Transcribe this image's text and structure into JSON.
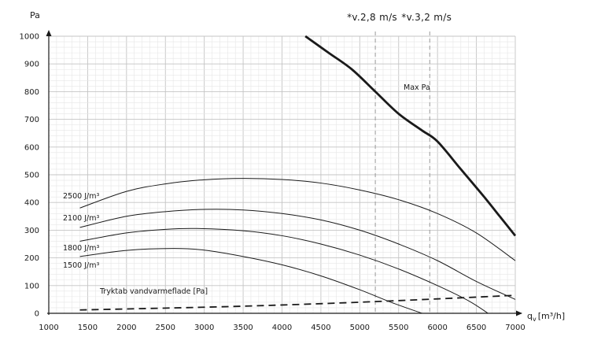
{
  "chart_data": {
    "type": "line",
    "ylabel": "Pa",
    "xlabel": "q",
    "xlabel_sub": "v",
    "xlabel_unit": "[m³/h]",
    "xlim": [
      1000,
      7000
    ],
    "ylim": [
      0,
      1000
    ],
    "x_ticks": [
      1000,
      1500,
      2000,
      2500,
      3000,
      3500,
      4000,
      4500,
      5000,
      5500,
      6000,
      6500,
      7000
    ],
    "y_ticks": [
      0,
      100,
      200,
      300,
      400,
      500,
      600,
      700,
      800,
      900,
      1000
    ],
    "x_minor_step": 100,
    "y_minor_step": 20,
    "grid": true,
    "velocity_markers": [
      {
        "label": "*v.2,8 m/s",
        "x": 5200
      },
      {
        "label": "*v.3,2 m/s",
        "x": 5900
      }
    ],
    "series": [
      {
        "name": "Max Pa",
        "style": "thick",
        "points": [
          [
            4300,
            1000
          ],
          [
            4600,
            940
          ],
          [
            4900,
            880
          ],
          [
            5200,
            800
          ],
          [
            5500,
            720
          ],
          [
            5800,
            660
          ],
          [
            6000,
            620
          ],
          [
            6300,
            520
          ],
          [
            6600,
            420
          ],
          [
            6800,
            350
          ],
          [
            7000,
            280
          ]
        ]
      },
      {
        "name": "2500 J/m³",
        "style": "thin",
        "points": [
          [
            1400,
            380
          ],
          [
            2000,
            440
          ],
          [
            2500,
            467
          ],
          [
            3000,
            482
          ],
          [
            3500,
            487
          ],
          [
            4000,
            483
          ],
          [
            4500,
            470
          ],
          [
            5000,
            445
          ],
          [
            5500,
            410
          ],
          [
            6000,
            360
          ],
          [
            6500,
            290
          ],
          [
            7000,
            190
          ]
        ]
      },
      {
        "name": "2100 J/m³",
        "style": "thin",
        "points": [
          [
            1400,
            310
          ],
          [
            2000,
            350
          ],
          [
            2500,
            367
          ],
          [
            3000,
            375
          ],
          [
            3500,
            373
          ],
          [
            4000,
            360
          ],
          [
            4500,
            337
          ],
          [
            5000,
            300
          ],
          [
            5500,
            250
          ],
          [
            6000,
            190
          ],
          [
            6500,
            115
          ],
          [
            7000,
            50
          ]
        ]
      },
      {
        "name": "1800 J/m³",
        "style": "thin",
        "points": [
          [
            1400,
            260
          ],
          [
            2000,
            290
          ],
          [
            2500,
            303
          ],
          [
            2900,
            306
          ],
          [
            3500,
            298
          ],
          [
            4000,
            280
          ],
          [
            4500,
            250
          ],
          [
            5000,
            210
          ],
          [
            5500,
            160
          ],
          [
            6000,
            100
          ],
          [
            6400,
            45
          ],
          [
            6650,
            0
          ]
        ]
      },
      {
        "name": "1500 J/m³",
        "style": "thin",
        "points": [
          [
            1400,
            205
          ],
          [
            2000,
            227
          ],
          [
            2600,
            234
          ],
          [
            3000,
            228
          ],
          [
            3500,
            205
          ],
          [
            4000,
            175
          ],
          [
            4500,
            135
          ],
          [
            5000,
            85
          ],
          [
            5400,
            40
          ],
          [
            5800,
            0
          ]
        ]
      },
      {
        "name": "Tryktab vandvarmeflade [Pa]",
        "style": "dashed",
        "points": [
          [
            1400,
            12
          ],
          [
            3000,
            22
          ],
          [
            4000,
            30
          ],
          [
            5000,
            40
          ],
          [
            6000,
            52
          ],
          [
            7000,
            65
          ]
        ]
      }
    ]
  }
}
